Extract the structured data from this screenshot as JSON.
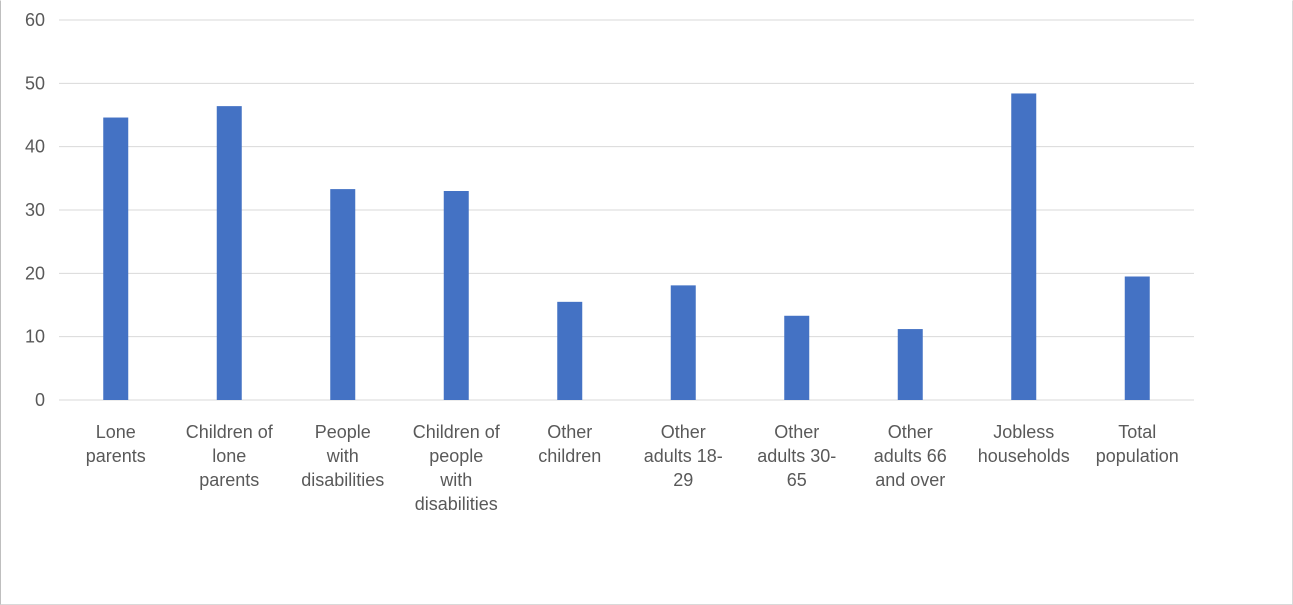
{
  "chart_data": {
    "type": "bar",
    "title": "",
    "xlabel": "",
    "ylabel": "",
    "ylim": [
      0,
      60
    ],
    "y_ticks": [
      0,
      10,
      20,
      30,
      40,
      50,
      60
    ],
    "grid": true,
    "legend": "none",
    "bar_color": "#4472c4",
    "categories": [
      [
        "Lone",
        "parents"
      ],
      [
        "Children of",
        "lone",
        "parents"
      ],
      [
        "People",
        "with",
        "disabilities"
      ],
      [
        "Children of",
        "people",
        "with",
        "disabilities"
      ],
      [
        "Other",
        "children"
      ],
      [
        "Other",
        "adults 18-",
        "29"
      ],
      [
        "Other",
        "adults 30-",
        "65"
      ],
      [
        "Other",
        "adults 66",
        "and over"
      ],
      [
        "Jobless",
        "households"
      ],
      [
        "Total",
        "population"
      ]
    ],
    "values": [
      44.6,
      46.4,
      33.3,
      33.0,
      15.5,
      18.1,
      13.3,
      11.2,
      48.4,
      19.5
    ]
  }
}
